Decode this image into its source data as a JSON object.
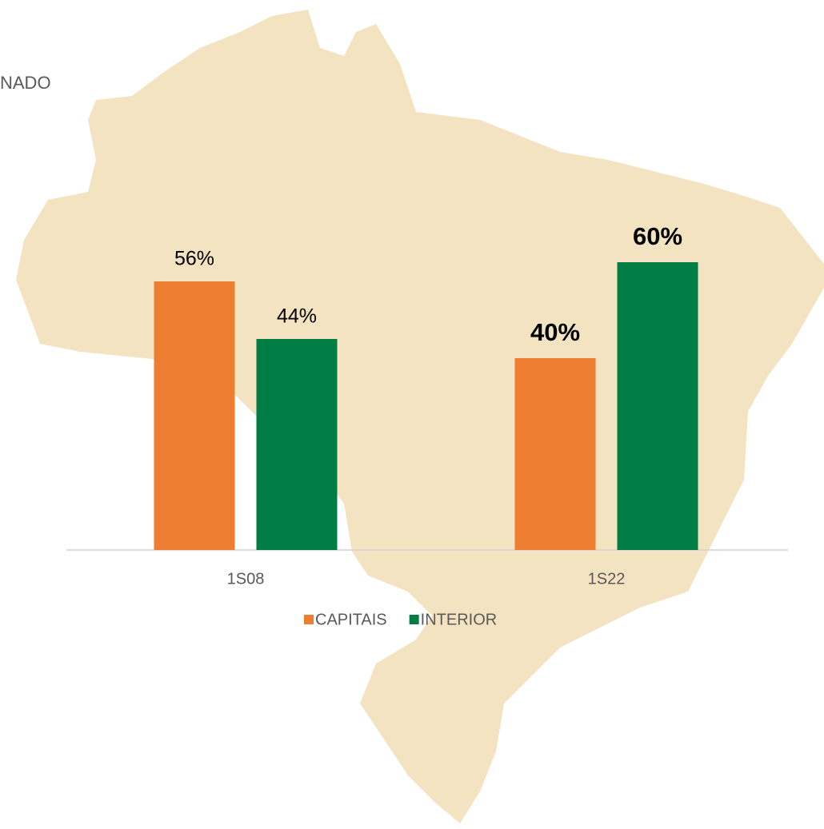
{
  "chart_data": {
    "type": "bar",
    "title": "NADO",
    "categories": [
      "1S08",
      "1S22"
    ],
    "series": [
      {
        "name": "CAPITAIS",
        "color": "#ed7d31",
        "values": [
          56,
          40
        ],
        "value_labels": [
          "56%",
          "40%"
        ]
      },
      {
        "name": "INTERIOR",
        "color": "#007d45",
        "values": [
          44,
          60
        ],
        "value_labels": [
          "44%",
          "60%"
        ]
      }
    ],
    "ylim": [
      0,
      100
    ],
    "legend": "bottom"
  }
}
